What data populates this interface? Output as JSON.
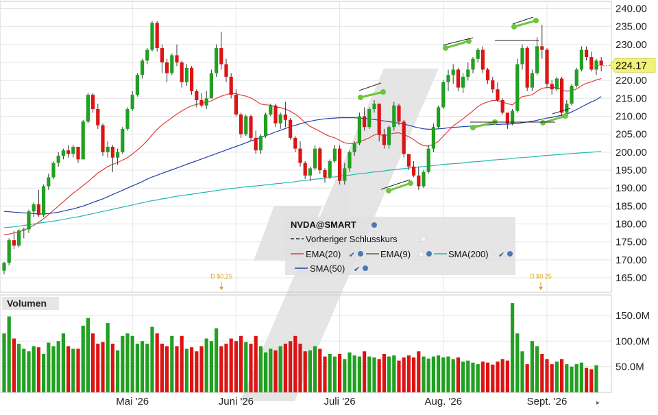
{
  "chart_data": {
    "type": "candlestick",
    "ticker": "NVDA@SMART",
    "last_price": "224.17",
    "price_axis": {
      "ylim": [
        161,
        242
      ],
      "ticks": [
        "240.00",
        "235.00",
        "230.00",
        "225.00",
        "220.00",
        "215.00",
        "210.00",
        "205.00",
        "200.00",
        "195.00",
        "190.00",
        "185.00",
        "180.00",
        "175.00",
        "170.00",
        "165.00"
      ]
    },
    "x_axis": {
      "labels": [
        {
          "text": "Mai '26",
          "day": 26
        },
        {
          "text": "Juni '26",
          "day": 47
        },
        {
          "text": "Juli '26",
          "day": 68
        },
        {
          "text": "Aug. '26",
          "day": 89
        },
        {
          "text": "Sept. '26",
          "day": 110
        }
      ]
    },
    "candles": [
      [
        167.0,
        169.5,
        166.0,
        169.2
      ],
      [
        169.2,
        176.0,
        168.5,
        175.5
      ],
      [
        175.5,
        178.0,
        173.0,
        174.0
      ],
      [
        174.0,
        178.5,
        173.5,
        178.2
      ],
      [
        178.2,
        179.0,
        176.0,
        178.5
      ],
      [
        178.5,
        184.0,
        177.5,
        183.5
      ],
      [
        183.5,
        186.0,
        182.0,
        185.5
      ],
      [
        185.5,
        189.5,
        182.0,
        182.5
      ],
      [
        182.5,
        191.0,
        182.0,
        190.5
      ],
      [
        190.5,
        194.0,
        189.5,
        193.0
      ],
      [
        193.0,
        197.5,
        192.5,
        197.0
      ],
      [
        197.0,
        200.0,
        196.0,
        199.0
      ],
      [
        199.0,
        201.0,
        198.0,
        200.5
      ],
      [
        200.5,
        202.0,
        198.5,
        199.5
      ],
      [
        199.5,
        202.0,
        198.5,
        201.5
      ],
      [
        201.5,
        201.5,
        197.0,
        198.0
      ],
      [
        198.0,
        209.0,
        198.0,
        208.5
      ],
      [
        208.5,
        216.5,
        208.0,
        216.0
      ],
      [
        216.0,
        216.5,
        211.0,
        212.0
      ],
      [
        212.0,
        213.5,
        206.5,
        207.5
      ],
      [
        207.5,
        208.0,
        199.0,
        200.0
      ],
      [
        200.0,
        203.0,
        198.5,
        201.5
      ],
      [
        201.5,
        202.0,
        194.5,
        198.5
      ],
      [
        198.5,
        201.0,
        196.5,
        200.0
      ],
      [
        200.0,
        207.0,
        199.5,
        206.5
      ],
      [
        206.5,
        212.5,
        206.0,
        212.0
      ],
      [
        212.0,
        217.0,
        211.5,
        216.0
      ],
      [
        216.0,
        222.0,
        215.5,
        221.5
      ],
      [
        221.5,
        226.0,
        220.5,
        225.5
      ],
      [
        225.5,
        229.0,
        224.5,
        228.5
      ],
      [
        228.5,
        236.5,
        228.0,
        236.0
      ],
      [
        236.0,
        236.5,
        228.0,
        229.0
      ],
      [
        229.0,
        230.0,
        222.0,
        225.0
      ],
      [
        225.0,
        226.0,
        219.5,
        222.0
      ],
      [
        222.0,
        227.5,
        221.5,
        227.0
      ],
      [
        227.0,
        230.0,
        224.0,
        225.0
      ],
      [
        225.0,
        225.5,
        218.0,
        219.5
      ],
      [
        219.5,
        224.5,
        218.5,
        223.5
      ],
      [
        223.5,
        224.0,
        216.0,
        217.0
      ],
      [
        217.0,
        217.5,
        212.5,
        214.5
      ],
      [
        214.5,
        216.5,
        212.5,
        213.0
      ],
      [
        213.0,
        217.0,
        212.0,
        215.0
      ],
      [
        215.0,
        223.0,
        215.0,
        222.0
      ],
      [
        222.0,
        230.0,
        221.0,
        229.0
      ],
      [
        229.0,
        233.5,
        223.0,
        224.5
      ],
      [
        224.5,
        226.0,
        219.5,
        221.0
      ],
      [
        221.0,
        222.0,
        215.0,
        216.0
      ],
      [
        216.0,
        217.5,
        210.0,
        210.5
      ],
      [
        210.5,
        211.0,
        204.0,
        205.0
      ],
      [
        205.0,
        210.5,
        204.5,
        210.0
      ],
      [
        210.0,
        210.5,
        203.0,
        204.0
      ],
      [
        204.0,
        206.0,
        199.5,
        200.5
      ],
      [
        200.5,
        205.0,
        199.5,
        204.5
      ],
      [
        204.5,
        211.0,
        204.0,
        210.5
      ],
      [
        210.5,
        213.5,
        210.0,
        213.0
      ],
      [
        213.0,
        213.5,
        207.0,
        208.0
      ],
      [
        208.0,
        211.0,
        206.5,
        210.5
      ],
      [
        210.5,
        214.0,
        207.0,
        209.0
      ],
      [
        209.0,
        209.5,
        203.5,
        204.0
      ],
      [
        204.0,
        204.5,
        200.0,
        201.0
      ],
      [
        201.0,
        203.0,
        196.0,
        197.0
      ],
      [
        197.0,
        197.5,
        192.5,
        193.5
      ],
      [
        193.5,
        196.0,
        192.0,
        195.5
      ],
      [
        195.5,
        202.0,
        195.0,
        201.0
      ],
      [
        201.0,
        201.5,
        194.0,
        195.0
      ],
      [
        195.0,
        195.5,
        191.5,
        193.0
      ],
      [
        193.0,
        198.0,
        192.5,
        197.5
      ],
      [
        197.5,
        202.0,
        197.0,
        201.0
      ],
      [
        201.0,
        202.0,
        191.0,
        192.0
      ],
      [
        192.0,
        197.0,
        191.0,
        195.5
      ],
      [
        195.5,
        200.5,
        194.5,
        200.0
      ],
      [
        200.0,
        203.0,
        199.0,
        202.5
      ],
      [
        202.5,
        211.0,
        202.0,
        210.0
      ],
      [
        210.0,
        212.5,
        206.0,
        207.0
      ],
      [
        207.0,
        212.5,
        206.5,
        212.0
      ],
      [
        212.0,
        214.5,
        211.0,
        213.5
      ],
      [
        213.5,
        213.5,
        203.0,
        205.0
      ],
      [
        205.0,
        206.5,
        201.0,
        202.0
      ],
      [
        202.0,
        207.5,
        201.0,
        207.0
      ],
      [
        207.0,
        214.0,
        206.0,
        213.0
      ],
      [
        213.0,
        213.5,
        207.5,
        208.5
      ],
      [
        208.5,
        209.0,
        198.5,
        199.5
      ],
      [
        199.5,
        199.5,
        195.0,
        196.0
      ],
      [
        196.0,
        197.5,
        193.0,
        193.5
      ],
      [
        193.5,
        196.0,
        189.5,
        190.5
      ],
      [
        190.5,
        195.0,
        190.0,
        194.5
      ],
      [
        194.5,
        202.0,
        194.0,
        201.0
      ],
      [
        201.0,
        208.0,
        200.0,
        207.0
      ],
      [
        207.0,
        213.0,
        206.5,
        212.5
      ],
      [
        212.5,
        220.0,
        212.0,
        219.5
      ],
      [
        219.5,
        223.0,
        217.0,
        221.5
      ],
      [
        221.5,
        224.5,
        219.0,
        223.0
      ],
      [
        223.0,
        223.5,
        217.0,
        218.0
      ],
      [
        218.0,
        222.0,
        216.5,
        221.0
      ],
      [
        221.0,
        225.0,
        220.0,
        223.0
      ],
      [
        223.0,
        226.5,
        222.0,
        226.0
      ],
      [
        226.0,
        229.0,
        225.0,
        228.5
      ],
      [
        228.5,
        229.5,
        222.0,
        223.0
      ],
      [
        223.0,
        223.5,
        219.0,
        220.0
      ],
      [
        220.0,
        221.0,
        216.5,
        217.5
      ],
      [
        217.5,
        219.5,
        214.0,
        214.5
      ],
      [
        214.5,
        215.0,
        210.5,
        211.0
      ],
      [
        211.0,
        211.0,
        206.5,
        208.0
      ],
      [
        208.0,
        212.0,
        207.5,
        211.5
      ],
      [
        211.5,
        226.0,
        211.0,
        224.5
      ],
      [
        224.5,
        230.0,
        223.0,
        229.0
      ],
      [
        229.0,
        229.5,
        217.0,
        218.0
      ],
      [
        218.0,
        223.0,
        217.0,
        222.0
      ],
      [
        222.0,
        232.0,
        221.5,
        229.5
      ],
      [
        229.5,
        235.5,
        226.0,
        228.5
      ],
      [
        228.5,
        229.0,
        218.0,
        219.0
      ],
      [
        219.0,
        220.0,
        216.0,
        217.5
      ],
      [
        217.5,
        221.0,
        217.0,
        220.5
      ],
      [
        220.5,
        221.0,
        209.5,
        211.0
      ],
      [
        211.0,
        214.5,
        210.0,
        213.5
      ],
      [
        213.5,
        219.0,
        213.0,
        218.5
      ],
      [
        218.5,
        223.5,
        218.0,
        223.0
      ],
      [
        223.0,
        229.5,
        222.5,
        228.5
      ],
      [
        228.5,
        229.5,
        225.5,
        226.5
      ],
      [
        226.5,
        228.0,
        222.5,
        223.0
      ],
      [
        223.0,
        226.0,
        221.5,
        225.5
      ],
      [
        225.5,
        226.5,
        222.5,
        224.17
      ]
    ],
    "volume": {
      "title": "Volumen",
      "ylim": [
        0,
        190
      ],
      "ticks": [
        "150.0M",
        "100.0M",
        "50.0M"
      ],
      "values_millions": [
        115,
        148,
        105,
        95,
        85,
        80,
        90,
        88,
        75,
        97,
        90,
        100,
        115,
        90,
        85,
        85,
        130,
        145,
        115,
        95,
        98,
        135,
        95,
        82,
        110,
        115,
        110,
        95,
        100,
        95,
        128,
        115,
        95,
        90,
        110,
        90,
        110,
        85,
        88,
        80,
        90,
        105,
        100,
        125,
        90,
        95,
        105,
        100,
        110,
        98,
        95,
        110,
        90,
        78,
        85,
        82,
        90,
        95,
        100,
        110,
        95,
        80,
        82,
        90,
        85,
        70,
        75,
        70,
        75,
        65,
        78,
        72,
        70,
        80,
        70,
        68,
        65,
        75,
        70,
        72,
        62,
        68,
        72,
        68,
        80,
        70,
        66,
        70,
        72,
        68,
        70,
        65,
        68,
        60,
        62,
        58,
        55,
        60,
        58,
        54,
        60,
        65,
        62,
        174,
        115,
        80,
        55,
        100,
        90,
        75,
        65,
        55,
        60,
        65,
        55,
        50,
        55,
        58,
        48,
        45,
        53
      ]
    },
    "series": [
      {
        "name": "EMA(20)",
        "color": "#e03c3c",
        "values": [
          177.0,
          177.2,
          177.5,
          177.8,
          178.3,
          178.9,
          179.6,
          180.5,
          181.5,
          182.6,
          183.8,
          185.0,
          186.2,
          187.4,
          188.6,
          189.6,
          190.7,
          191.8,
          193.0,
          194.2,
          195.1,
          196.0,
          196.6,
          197.1,
          197.8,
          198.5,
          199.5,
          200.6,
          201.8,
          203.2,
          204.8,
          206.4,
          207.6,
          208.6,
          209.6,
          210.6,
          211.5,
          212.3,
          212.9,
          213.3,
          213.6,
          213.9,
          214.3,
          215.0,
          215.6,
          216.0,
          216.4,
          216.3,
          215.9,
          215.6,
          215.1,
          214.3,
          213.4,
          213.2,
          213.1,
          212.6,
          212.4,
          212.0,
          211.4,
          210.6,
          209.5,
          208.2,
          207.2,
          206.5,
          205.8,
          205.0,
          204.4,
          204.0,
          203.3,
          202.6,
          202.4,
          202.4,
          203.0,
          203.4,
          204.0,
          204.8,
          204.9,
          204.6,
          204.9,
          205.3,
          205.4,
          204.9,
          204.3,
          203.5,
          202.5,
          201.8,
          201.7,
          202.2,
          203.0,
          204.5,
          205.9,
          207.3,
          208.3,
          209.3,
          210.4,
          211.5,
          212.7,
          213.5,
          214.0,
          214.4,
          214.4,
          214.0,
          213.5,
          213.2,
          214.4,
          215.5,
          215.7,
          216.0,
          217.0,
          217.8,
          218.0,
          218.0,
          218.1,
          217.3,
          217.0,
          217.1,
          217.6,
          218.5,
          219.2,
          219.6,
          220.1,
          220.5
        ]
      },
      {
        "name": "EMA(9)",
        "color": "#556b2f",
        "values": []
      },
      {
        "name": "SMA(200)",
        "color": "#20b8b0",
        "values": [
          179.0,
          179.1,
          179.2,
          179.4,
          179.6,
          179.8,
          180.0,
          180.2,
          180.4,
          180.6,
          180.8,
          181.0,
          181.3,
          181.5,
          181.8,
          182.0,
          182.3,
          182.6,
          182.9,
          183.2,
          183.5,
          183.8,
          184.1,
          184.4,
          184.7,
          185.0,
          185.3,
          185.6,
          185.9,
          186.2,
          186.5,
          186.7,
          187.0,
          187.2,
          187.5,
          187.7,
          187.9,
          188.1,
          188.3,
          188.5,
          188.7,
          188.9,
          189.1,
          189.3,
          189.5,
          189.7,
          189.9,
          190.0,
          190.2,
          190.4,
          190.5,
          190.6,
          190.7,
          190.9,
          191.0,
          191.2,
          191.3,
          191.5,
          191.6,
          191.8,
          192.0,
          192.1,
          192.3,
          192.5,
          192.6,
          192.8,
          193.0,
          193.1,
          193.3,
          193.5,
          193.6,
          193.8,
          194.0,
          194.1,
          194.3,
          194.5,
          194.6,
          194.8,
          195.0,
          195.1,
          195.3,
          195.4,
          195.6,
          195.7,
          195.9,
          196.0,
          196.1,
          196.3,
          196.4,
          196.6,
          196.7,
          196.8,
          196.9,
          197.0,
          197.2,
          197.3,
          197.4,
          197.5,
          197.7,
          197.8,
          197.9,
          198.0,
          198.1,
          198.3,
          198.4,
          198.5,
          198.6,
          198.7,
          198.8,
          199.0,
          199.1,
          199.2,
          199.3,
          199.4,
          199.5,
          199.6,
          199.7,
          199.8,
          199.9,
          200.0,
          200.1,
          200.2
        ]
      },
      {
        "name": "SMA(50)",
        "color": "#1f3ea8",
        "values": [
          183.5,
          183.4,
          183.3,
          183.2,
          183.1,
          183.0,
          182.9,
          182.8,
          182.8,
          182.9,
          183.1,
          183.3,
          183.6,
          183.9,
          184.2,
          184.6,
          185.0,
          185.5,
          186.0,
          186.5,
          187.0,
          187.6,
          188.2,
          188.8,
          189.4,
          190.0,
          190.6,
          191.2,
          191.8,
          192.5,
          193.1,
          193.6,
          194.1,
          194.6,
          195.1,
          195.6,
          196.1,
          196.6,
          197.1,
          197.6,
          198.1,
          198.6,
          199.1,
          199.6,
          200.1,
          200.6,
          201.1,
          201.6,
          202.1,
          202.6,
          203.1,
          203.6,
          204.1,
          204.6,
          205.1,
          205.6,
          206.1,
          206.6,
          207.1,
          207.5,
          207.9,
          208.3,
          208.6,
          208.9,
          209.1,
          209.3,
          209.4,
          209.5,
          209.6,
          209.6,
          209.6,
          209.6,
          209.5,
          209.4,
          209.3,
          209.1,
          208.9,
          208.7,
          208.5,
          208.3,
          208.1,
          207.8,
          207.5,
          207.1,
          206.8,
          206.5,
          206.4,
          206.4,
          206.5,
          206.6,
          206.8,
          206.9,
          207.0,
          207.1,
          207.2,
          207.3,
          207.4,
          207.5,
          207.6,
          207.7,
          207.7,
          207.8,
          207.8,
          207.9,
          208.0,
          208.2,
          208.4,
          208.6,
          208.9,
          209.2,
          209.5,
          209.7,
          210.0,
          210.3,
          210.6,
          211.2,
          211.9,
          212.6,
          213.3,
          214.0,
          214.6,
          215.5
        ]
      }
    ],
    "dividends": [
      {
        "label": "D $0.25",
        "day": 60
      },
      {
        "label": "D $0.25",
        "day": 144
      }
    ],
    "legend": {
      "ticker": "NVDA@SMART",
      "prev_close": "Vorheriger Schlusskurs",
      "ema20": "EMA(20)",
      "ema9": "EMA(9)",
      "sma200": "SMA(200)",
      "sma50": "SMA(50)"
    },
    "colors": {
      "up": "#21a021",
      "down": "#dc1414",
      "marker": "#6cc63a",
      "price_tag": "#f2f27a"
    }
  }
}
